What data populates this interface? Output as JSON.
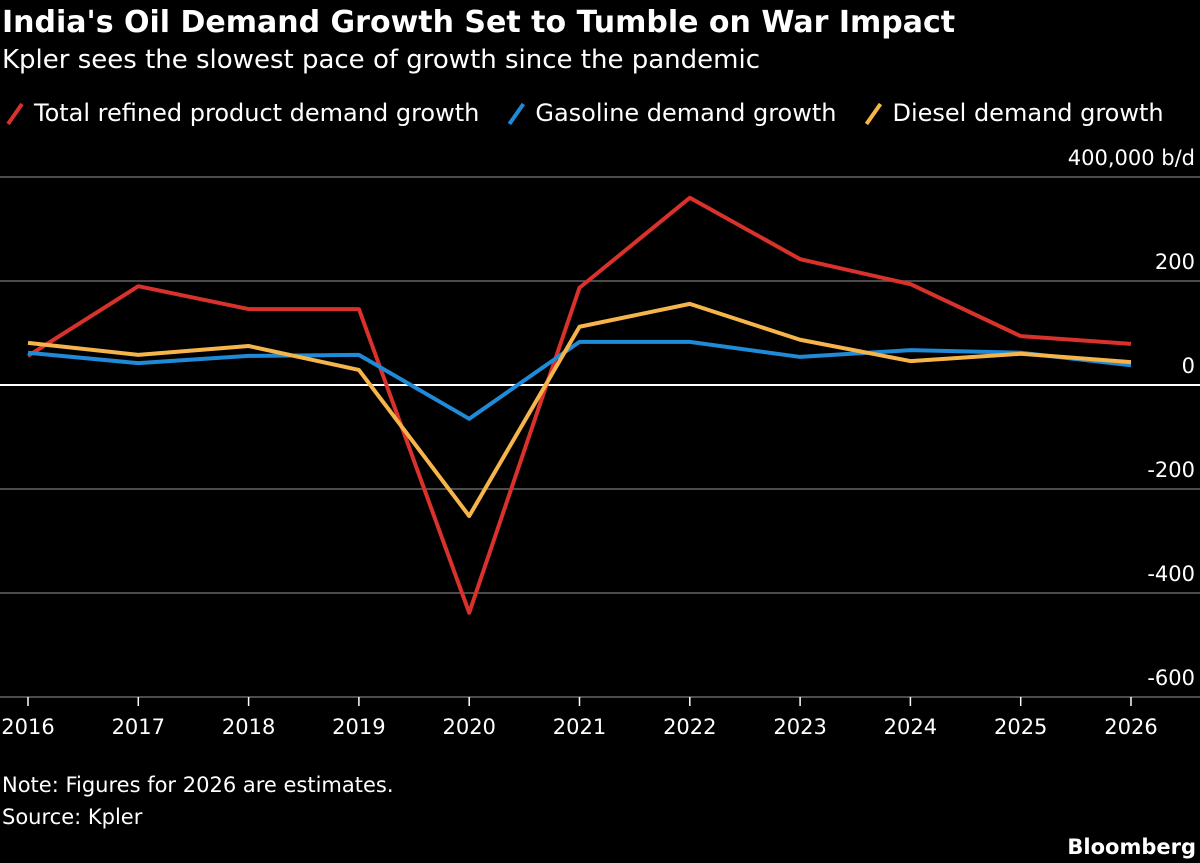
{
  "chart_data": {
    "type": "line",
    "title": "India's Oil Demand Growth Set to Tumble on War Impact",
    "subtitle": "Kpler sees the slowest pace of growth since the pandemic",
    "categories": [
      "2016",
      "2017",
      "2018",
      "2019",
      "2020",
      "2021",
      "2022",
      "2023",
      "2024",
      "2025",
      "2026"
    ],
    "series": [
      {
        "name": "Total refined product demand growth",
        "color": "#d9312b",
        "values": [
          56000,
          190000,
          146000,
          146000,
          -438000,
          187000,
          360000,
          242000,
          194000,
          94000,
          79000
        ]
      },
      {
        "name": "Gasoline demand growth",
        "color": "#1f8ad8",
        "values": [
          62000,
          42000,
          56000,
          58000,
          -65000,
          83000,
          83000,
          54000,
          67000,
          62000,
          38000
        ]
      },
      {
        "name": "Diesel demand growth",
        "color": "#f6b54a",
        "values": [
          81000,
          58000,
          75000,
          29000,
          -252000,
          112000,
          156000,
          87000,
          46000,
          60000,
          44000
        ]
      }
    ],
    "ylim": [
      -600000,
      400000
    ],
    "yticks": [
      {
        "value": -600000,
        "label": "-600"
      },
      {
        "value": -400000,
        "label": "-400"
      },
      {
        "value": -200000,
        "label": "-200"
      },
      0,
      {
        "value": 200000,
        "label": "200"
      },
      {
        "value": 400000,
        "label": "400,000 b/d"
      }
    ],
    "grid": true,
    "note": "Note: Figures for 2026 are estimates.",
    "source": "Source: Kpler",
    "brand": "Bloomberg"
  }
}
